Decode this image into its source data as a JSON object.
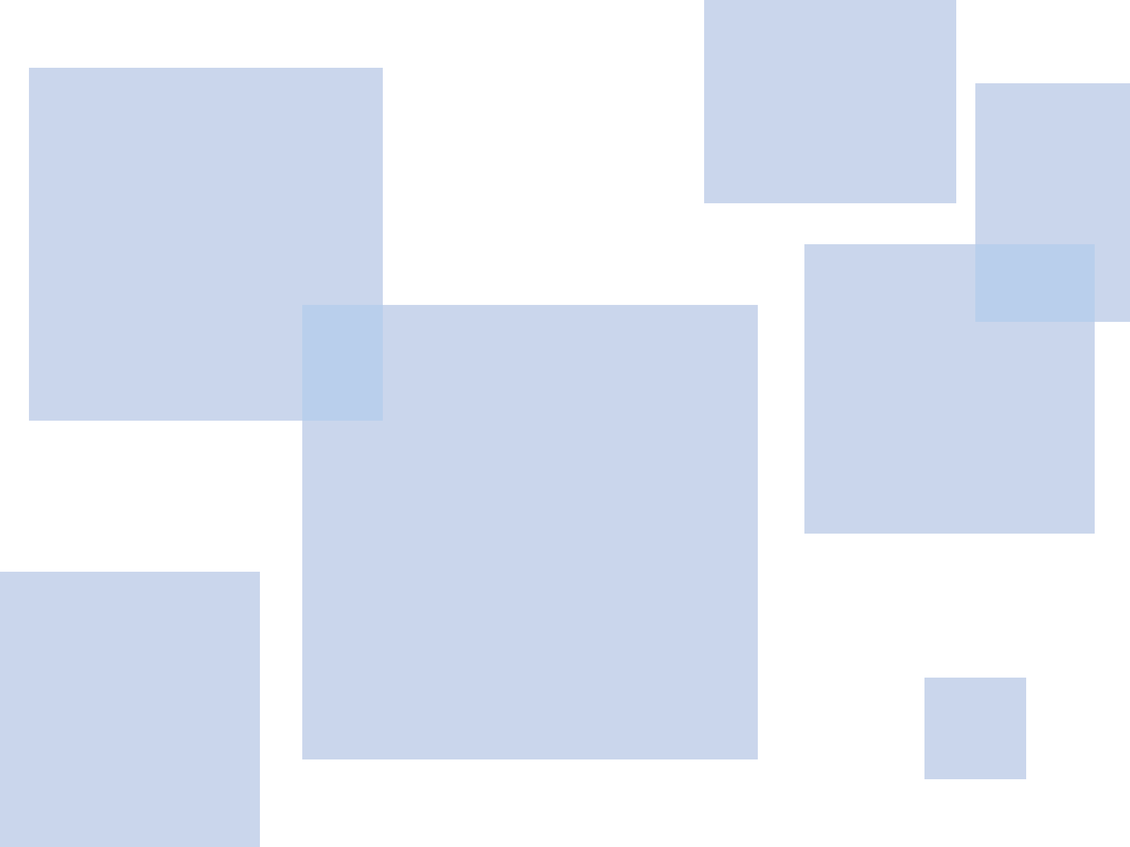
{
  "colors": {
    "block": "#cad6ec",
    "overlap": "#b9cfec"
  }
}
